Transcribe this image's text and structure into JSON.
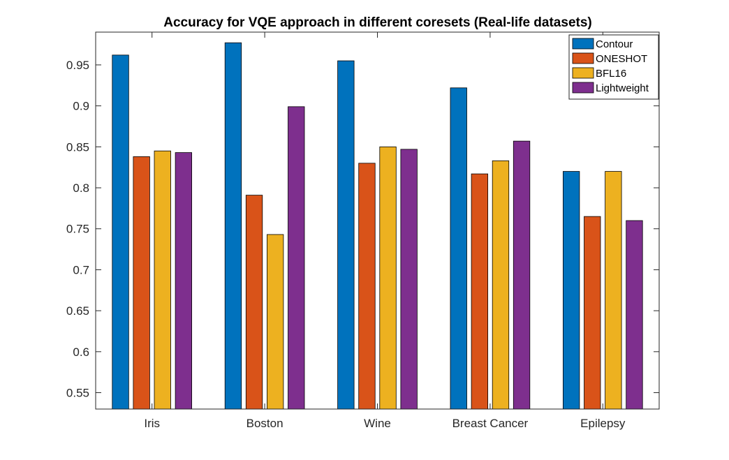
{
  "chart_data": {
    "type": "bar",
    "title": "Accuracy for VQE approach in different coresets (Real-life datasets)",
    "xlabel": "",
    "ylabel": "",
    "categories": [
      "Iris",
      "Boston",
      "Wine",
      "Breast Cancer",
      "Epilepsy"
    ],
    "series": [
      {
        "name": "Contour",
        "color": "#0072BD",
        "values": [
          0.962,
          0.977,
          0.955,
          0.922,
          0.82
        ]
      },
      {
        "name": "ONESHOT",
        "color": "#D95319",
        "values": [
          0.838,
          0.791,
          0.83,
          0.817,
          0.765
        ]
      },
      {
        "name": "BFL16",
        "color": "#EDB120",
        "values": [
          0.845,
          0.743,
          0.85,
          0.833,
          0.82
        ]
      },
      {
        "name": "Lightweight",
        "color": "#7E2F8E",
        "values": [
          0.843,
          0.899,
          0.847,
          0.857,
          0.76
        ]
      }
    ],
    "ylim": [
      0.53,
      0.99
    ],
    "yticks": [
      0.55,
      0.6,
      0.65,
      0.7,
      0.75,
      0.8,
      0.85,
      0.9,
      0.95
    ],
    "ytick_labels": [
      "0.55",
      "0.6",
      "0.65",
      "0.7",
      "0.75",
      "0.8",
      "0.85",
      "0.9",
      "0.95"
    ],
    "legend_position": "top-right",
    "grid": false
  }
}
